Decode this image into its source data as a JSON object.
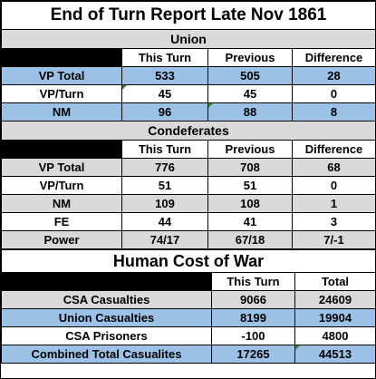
{
  "title": "End of Turn Report Late Nov 1861",
  "union": {
    "heading": "Union",
    "columns": [
      "This Turn",
      "Previous",
      "Difference"
    ],
    "rows": [
      {
        "label": "VP Total",
        "this_turn": "533",
        "previous": "505",
        "difference": "28"
      },
      {
        "label": "VP/Turn",
        "this_turn": "45",
        "previous": "45",
        "difference": "0"
      },
      {
        "label": "NM",
        "this_turn": "96",
        "previous": "88",
        "difference": "8"
      }
    ]
  },
  "confederates": {
    "heading": "Condeferates",
    "columns": [
      "This Turn",
      "Previous",
      "Difference"
    ],
    "rows": [
      {
        "label": "VP Total",
        "this_turn": "776",
        "previous": "708",
        "difference": "68"
      },
      {
        "label": "VP/Turn",
        "this_turn": "51",
        "previous": "51",
        "difference": "0"
      },
      {
        "label": "NM",
        "this_turn": "109",
        "previous": "108",
        "difference": "1"
      },
      {
        "label": "FE",
        "this_turn": "44",
        "previous": "41",
        "difference": "3"
      },
      {
        "label": "Power",
        "this_turn": "74/17",
        "previous": "67/18",
        "difference": "7/-1"
      }
    ]
  },
  "human_cost": {
    "heading": "Human Cost of War",
    "columns": [
      "This Turn",
      "Total"
    ],
    "rows": [
      {
        "label": "CSA Casualties",
        "this_turn": "9066",
        "total": "24609"
      },
      {
        "label": "Union Casualties",
        "this_turn": "8199",
        "total": "19904"
      },
      {
        "label": "CSA Prisoners",
        "this_turn": "-100",
        "total": "4800"
      },
      {
        "label": "Combined Total Casualites",
        "this_turn": "17265",
        "total": "44513"
      }
    ]
  },
  "colors": {
    "blue_row": "#9bc2e6",
    "grey_row": "#d9d9d9",
    "header_black": "#000000",
    "cell_marker": "#2e8b2e"
  }
}
